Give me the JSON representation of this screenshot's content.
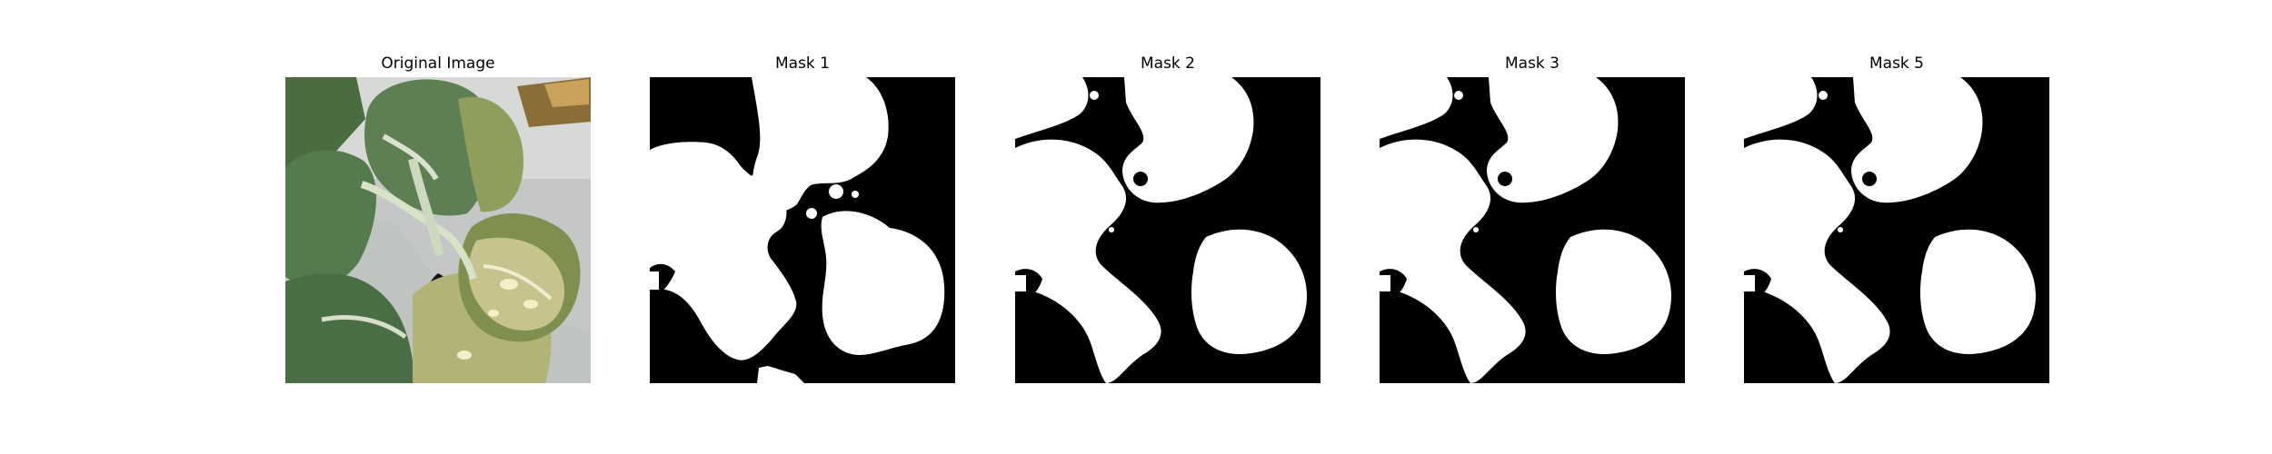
{
  "figure": {
    "panels": [
      {
        "title": "Original Image"
      },
      {
        "title": "Mask 1"
      },
      {
        "title": "Mask 2"
      },
      {
        "title": "Mask 3"
      },
      {
        "title": "Mask 5"
      }
    ]
  },
  "colors": {
    "background": "#ffffff",
    "mask_foreground": "#ffffff",
    "mask_background": "#000000",
    "leaf_dark": "#3f5f35",
    "leaf_mid": "#5f7f4f",
    "leaf_light": "#d6e0b8",
    "pot_white": "#dfe5e3"
  }
}
